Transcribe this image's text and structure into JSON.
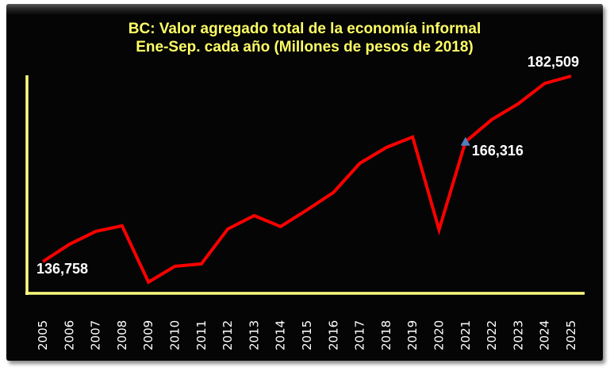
{
  "title": {
    "line1": "BC: Valor agregado total de la economía informal",
    "line2": "Ene-Sep. cada año (Millones de pesos de 2018)"
  },
  "colors": {
    "background": "#050505",
    "title": "#ffff66",
    "axis": "#ffff80",
    "line": "#ff0000",
    "labels": "#ffffff",
    "marker": "#4f81bd"
  },
  "annotations": [
    {
      "year": "2005",
      "text": "136,758"
    },
    {
      "year": "2021",
      "text": "166,316",
      "marker": "triangle"
    },
    {
      "year": "2025",
      "text": "182,509"
    }
  ],
  "chart_data": {
    "type": "line",
    "title": "BC: Valor agregado total de la economía informal Ene-Sep. cada año (Millones de pesos de 2018)",
    "xlabel": "",
    "ylabel": "",
    "categories": [
      "2005",
      "2006",
      "2007",
      "2008",
      "2009",
      "2010",
      "2011",
      "2012",
      "2013",
      "2014",
      "2015",
      "2016",
      "2017",
      "2018",
      "2019",
      "2020",
      "2021",
      "2022",
      "2023",
      "2024",
      "2025"
    ],
    "series": [
      {
        "name": "Valor agregado total de la economía informal",
        "color": "#ff0000",
        "values": [
          136758,
          141000,
          144200,
          145600,
          131700,
          135600,
          136200,
          144800,
          148100,
          145400,
          149500,
          153800,
          161000,
          164900,
          167500,
          144600,
          166316,
          171800,
          175700,
          180700,
          182509
        ]
      }
    ],
    "ylim": [
      128500,
      184500
    ],
    "grid": false,
    "legend": "none",
    "y_tick_labels_visible": false
  }
}
